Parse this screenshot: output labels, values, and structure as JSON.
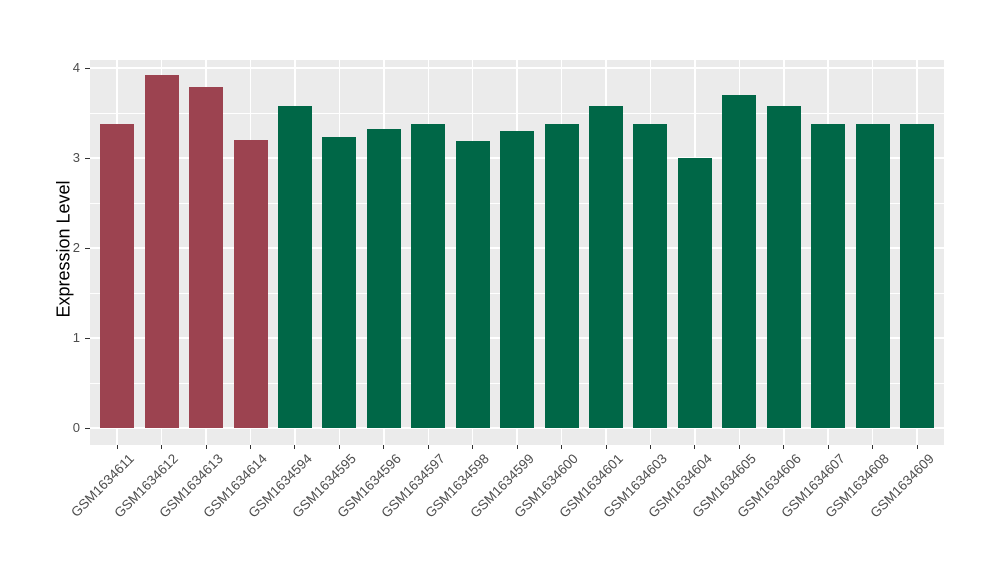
{
  "chart_data": {
    "type": "bar",
    "title": "",
    "xlabel": "",
    "ylabel": "Expression Level",
    "ylim": [
      0,
      4.1
    ],
    "yticks": [
      0,
      1,
      2,
      3,
      4
    ],
    "minor_gridlines": [
      0.5,
      1.5,
      2.5,
      3.5
    ],
    "grid": "on",
    "legend": "none",
    "categories": [
      "GSM1634611",
      "GSM1634612",
      "GSM1634613",
      "GSM1634614",
      "GSM1634594",
      "GSM1634595",
      "GSM1634596",
      "GSM1634597",
      "GSM1634598",
      "GSM1634599",
      "GSM1634600",
      "GSM1634601",
      "GSM1634603",
      "GSM1634604",
      "GSM1634605",
      "GSM1634606",
      "GSM1634607",
      "GSM1634608",
      "GSM1634609"
    ],
    "values": [
      3.38,
      3.92,
      3.79,
      3.2,
      3.58,
      3.23,
      3.32,
      3.38,
      3.19,
      3.3,
      3.38,
      3.58,
      3.38,
      3.0,
      3.7,
      3.58,
      3.38,
      3.38,
      3.38
    ],
    "bar_groups": [
      "red",
      "red",
      "red",
      "red",
      "green",
      "green",
      "green",
      "green",
      "green",
      "green",
      "green",
      "green",
      "green",
      "green",
      "green",
      "green",
      "green",
      "green",
      "green"
    ],
    "group_colors": {
      "red": "#9C4350",
      "green": "#006747"
    },
    "panel_background": "#EBEBEB",
    "gridline_color": "#FFFFFF",
    "tick_color": "#333333",
    "tick_label_color": "#4D4D4D",
    "axis_title_color": "#000000"
  }
}
